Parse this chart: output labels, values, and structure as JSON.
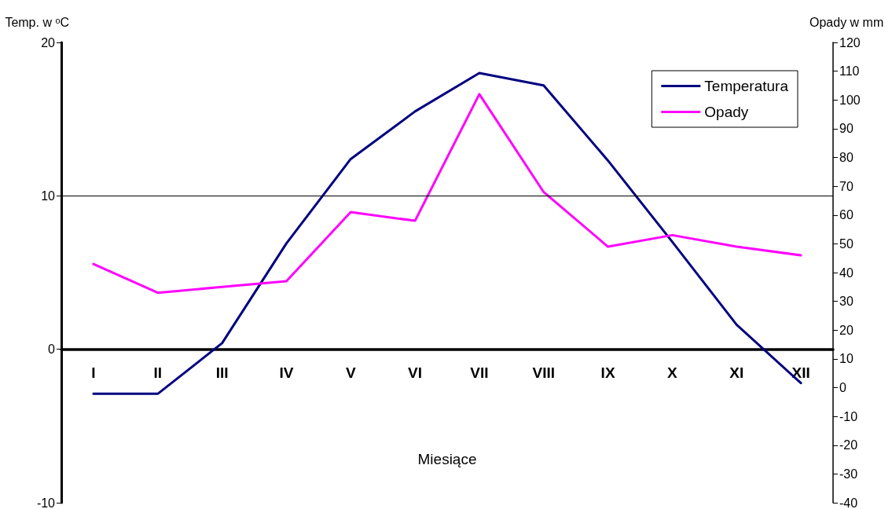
{
  "chart_data": {
    "type": "line",
    "xlabel": "Miesiące",
    "ylabel": "Temp. w ᵒC",
    "y2label": "Opady w mm",
    "categories": [
      "I",
      "II",
      "III",
      "IV",
      "V",
      "VI",
      "VII",
      "VIII",
      "IX",
      "X",
      "XI",
      "XII"
    ],
    "series": [
      {
        "name": "Temperatura",
        "color": "#000080",
        "values": [
          -2.9,
          -2.9,
          0.4,
          6.9,
          12.4,
          15.5,
          18.0,
          17.2,
          12.3,
          7.0,
          1.6,
          -2.2
        ]
      },
      {
        "name": "Opady",
        "color": "#ff00ff",
        "axis": "y2",
        "values": [
          43,
          33,
          35,
          37,
          61,
          58,
          102,
          68,
          49,
          53,
          49,
          46
        ]
      }
    ],
    "ylim": [
      -10,
      20
    ],
    "yticks": [
      -10,
      0,
      10,
      20
    ],
    "y2lim": [
      -40,
      120
    ],
    "y2ticks": [
      -40,
      -30,
      -20,
      -10,
      0,
      10,
      20,
      30,
      40,
      50,
      60,
      70,
      80,
      90,
      100,
      110,
      120
    ],
    "ref_lines": [
      {
        "axis": "y",
        "value": 10,
        "color": "#000000"
      }
    ],
    "legend": "top right",
    "marker": "none",
    "line_style": "solid"
  }
}
